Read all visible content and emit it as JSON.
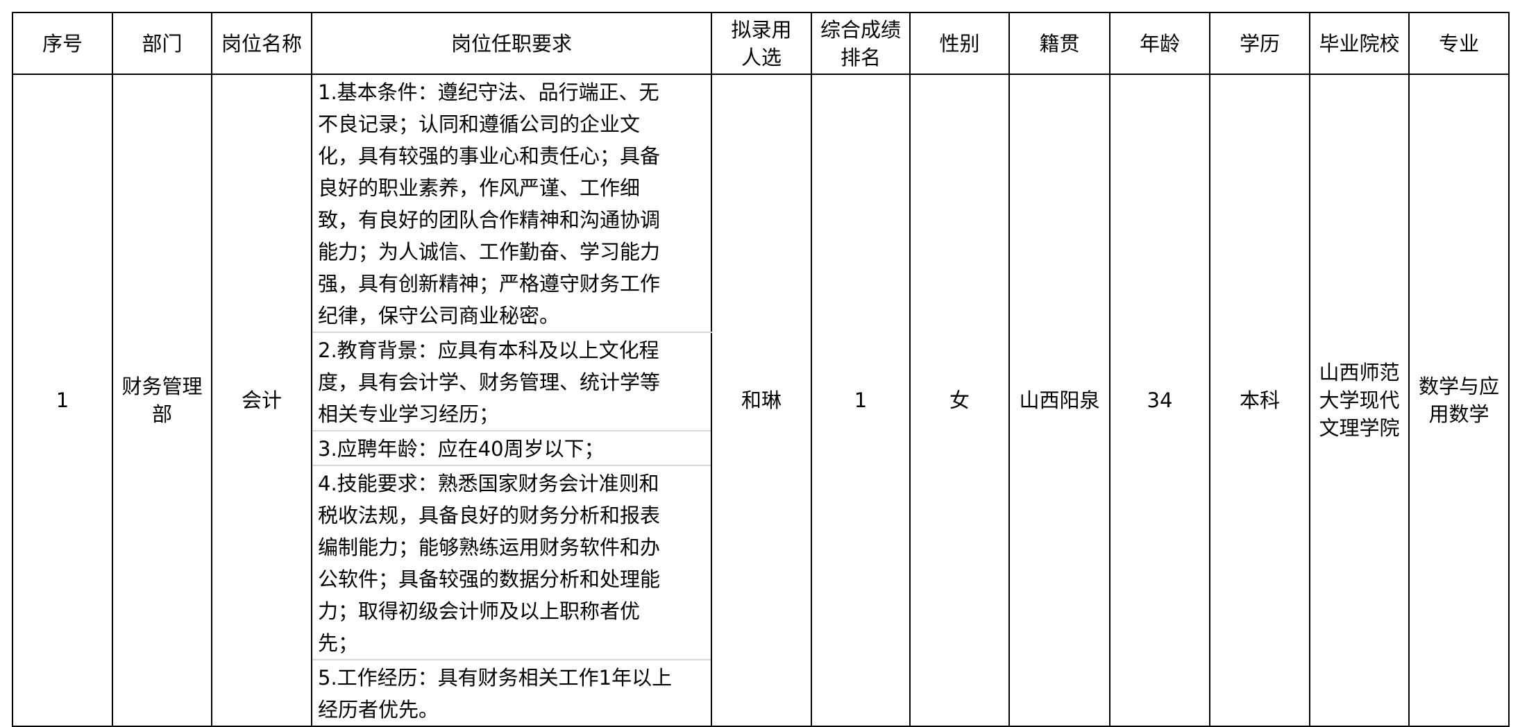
{
  "headers": [
    "序号",
    "部门",
    "岗位名称",
    "岗位任职要求",
    "拟录用\n人选",
    "综合成绩\n排名",
    "性别",
    "籍贯",
    "年龄",
    "学历",
    "毕业院校",
    "专业"
  ],
  "row": {
    "index": "1",
    "department": "财务管理\n部",
    "position": "会计",
    "requirements": [
      "1.基本条件：遵纪守法、品行端正、无\n不良记录；认同和遵循公司的企业文\n化，具有较强的事业心和责任心；具备\n良好的职业素养，作风严谨、工作细\n致，有良好的团队合作精神和沟通协调\n能力；为人诚信、工作勤奋、学习能力\n强，具有创新精神；严格遵守财务工作\n纪律，保守公司商业秘密。",
      "2.教育背景：应具有本科及以上文化程\n度，具有会计学、财务管理、统计学等\n相关专业学习经历；",
      "3.应聘年龄：应在40周岁以下；",
      "4.技能要求：熟悉国家财务会计准则和\n税收法规，具备良好的财务分析和报表\n编制能力；能够熟练运用财务软件和办\n公软件；具备较强的数据分析和处理能\n力；取得初级会计师及以上职称者优\n先；",
      "5.工作经历：具有财务相关工作1年以上\n经历者优先。"
    ],
    "candidate": "和琳",
    "rank": "1",
    "gender": "女",
    "hometown": "山西阳泉",
    "age": "34",
    "education": "本科",
    "school": "山西师范\n大学现代\n文理学院",
    "major": "数学与应\n用数学"
  }
}
